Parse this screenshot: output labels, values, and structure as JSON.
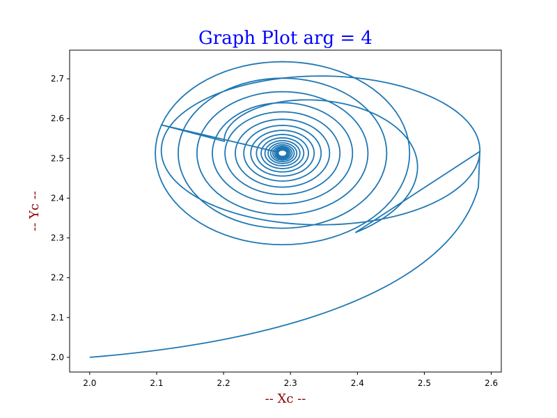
{
  "chart_data": {
    "type": "line",
    "title": "Graph Plot arg = 4",
    "xlabel": "-- Xc --",
    "ylabel": "-- Yc --",
    "xlim": [
      1.97,
      2.615
    ],
    "ylim": [
      1.963,
      2.772
    ],
    "x_ticks": [
      "2.0",
      "2.1",
      "2.2",
      "2.3",
      "2.4",
      "2.5",
      "2.6"
    ],
    "y_ticks": [
      "2.0",
      "2.1",
      "2.2",
      "2.3",
      "2.4",
      "2.5",
      "2.6",
      "2.7"
    ],
    "grid": false,
    "colors": {
      "title": "#0000ff",
      "axis_label": "#8b0000",
      "series": "#1f77b4"
    },
    "series": [
      {
        "spiral": {
          "start": [
            2.0,
            2.0
          ],
          "center": [
            2.288,
            2.513
          ],
          "rightmost": [
            2.583,
            2.443
          ],
          "top": [
            2.323,
            2.733
          ],
          "leftmost": [
            2.108,
            2.533
          ],
          "bottom_second_loop": [
            2.27,
            2.361
          ]
        }
      }
    ]
  }
}
